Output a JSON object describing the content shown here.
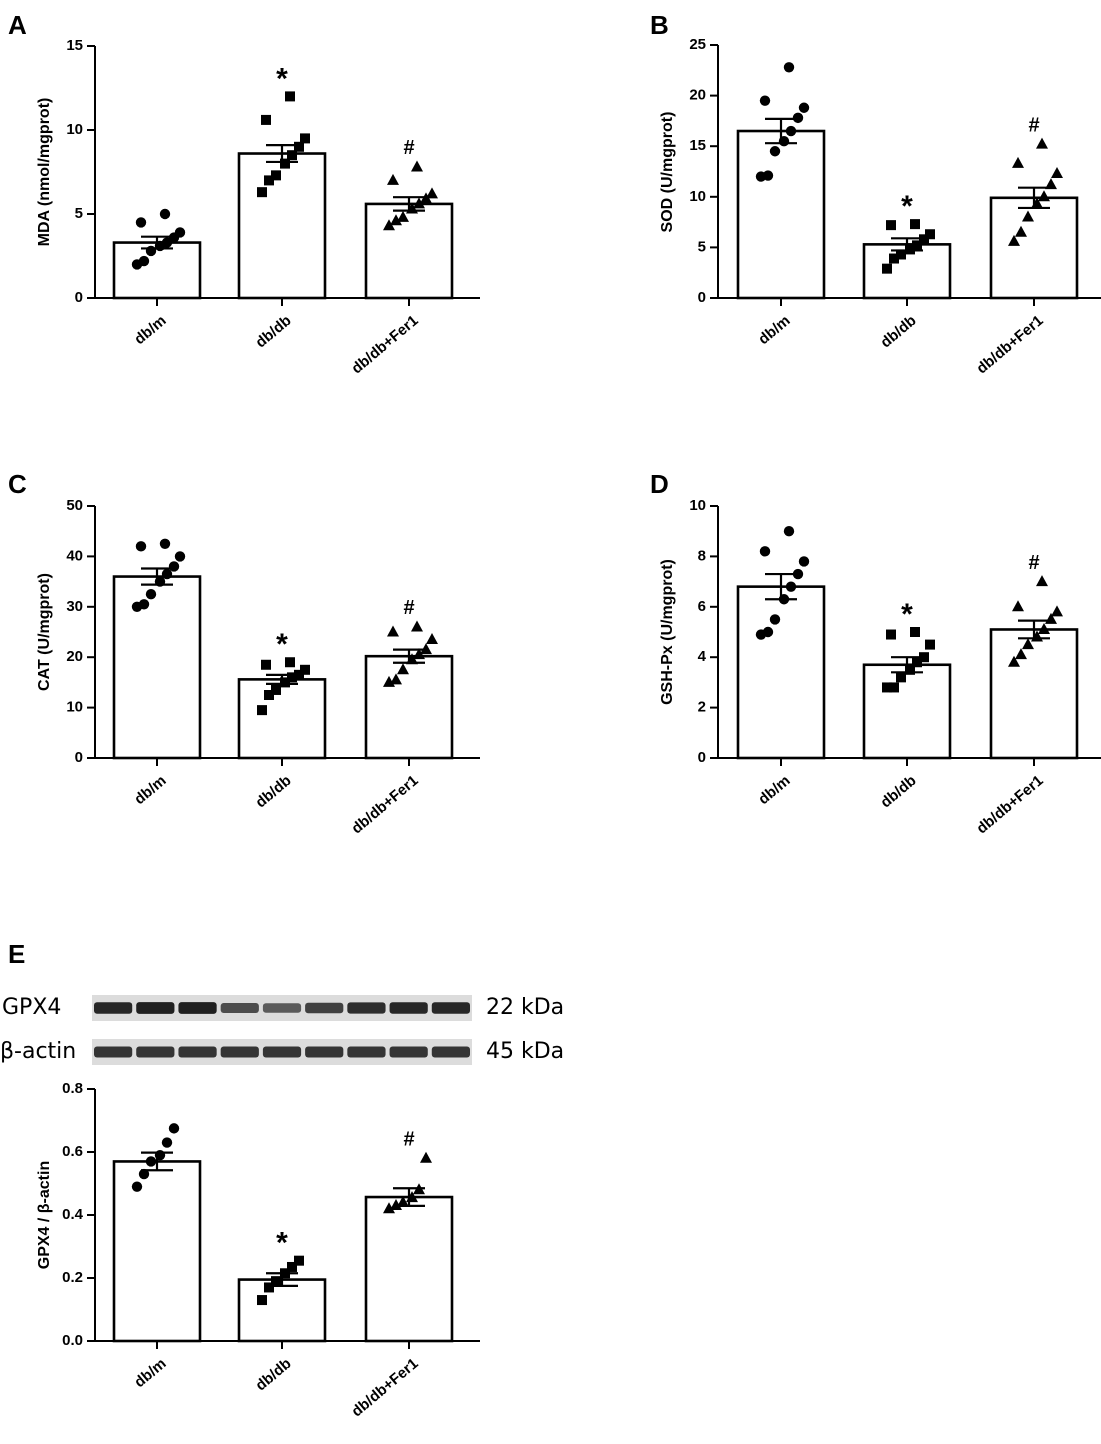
{
  "colors": {
    "ink": "#000000",
    "background": "#ffffff",
    "blot_band": "#1a1a1a",
    "blot_bg": "#dcdcdc"
  },
  "blot": {
    "rows": [
      {
        "label": "GPX4",
        "size": "22 kDa",
        "intensity": [
          0.9,
          0.95,
          0.95,
          0.6,
          0.5,
          0.7,
          0.85,
          0.9,
          0.9
        ]
      },
      {
        "label": "β-actin",
        "size": "45 kDa",
        "intensity": [
          0.8,
          0.8,
          0.8,
          0.8,
          0.8,
          0.8,
          0.8,
          0.8,
          0.8
        ]
      }
    ]
  },
  "chart_data": [
    {
      "type": "bar",
      "panel": "A",
      "ylabel": "MDA (nmol/mgprot)",
      "ylim": [
        0,
        15
      ],
      "yticks": [
        "0",
        "5",
        "10",
        "15"
      ],
      "categories": [
        "db/m",
        "db/db",
        "db/db+Fer1"
      ],
      "values": [
        3.3,
        8.6,
        5.6
      ],
      "sem": [
        0.35,
        0.5,
        0.4
      ],
      "markers": [
        "circle",
        "square",
        "triangle"
      ],
      "points": [
        [
          2.0,
          2.2,
          2.8,
          3.1,
          3.3,
          3.6,
          3.9,
          4.5,
          5.0
        ],
        [
          6.3,
          7.0,
          7.3,
          8.0,
          8.5,
          9.0,
          9.5,
          10.6,
          12.0
        ],
        [
          4.3,
          4.6,
          4.8,
          5.3,
          5.6,
          5.9,
          6.2,
          7.0,
          7.8
        ]
      ],
      "significance": [
        "",
        "*",
        "#"
      ]
    },
    {
      "type": "bar",
      "panel": "B",
      "ylabel": "SOD (U/mgprot)",
      "ylim": [
        0,
        25
      ],
      "yticks": [
        "0",
        "5",
        "10",
        "15",
        "20",
        "25"
      ],
      "categories": [
        "db/m",
        "db/db",
        "db/db+Fer1"
      ],
      "values": [
        16.5,
        5.3,
        9.9
      ],
      "sem": [
        1.2,
        0.6,
        1.0
      ],
      "markers": [
        "circle",
        "square",
        "triangle"
      ],
      "points": [
        [
          12.0,
          12.1,
          14.5,
          15.5,
          16.5,
          17.8,
          18.8,
          19.5,
          22.8
        ],
        [
          2.9,
          3.9,
          4.3,
          4.8,
          5.2,
          5.8,
          6.3,
          7.2,
          7.3
        ],
        [
          5.6,
          6.5,
          8.0,
          9.3,
          10.0,
          11.2,
          12.3,
          13.3,
          15.2
        ]
      ],
      "significance": [
        "",
        "*",
        "#"
      ]
    },
    {
      "type": "bar",
      "panel": "C",
      "ylabel": "CAT (U/mgprot)",
      "ylim": [
        0,
        50
      ],
      "yticks": [
        "0",
        "10",
        "20",
        "30",
        "40",
        "50"
      ],
      "categories": [
        "db/m",
        "db/db",
        "db/db+Fer1"
      ],
      "values": [
        36,
        15.6,
        20.2
      ],
      "sem": [
        1.6,
        0.9,
        1.3
      ],
      "markers": [
        "circle",
        "square",
        "triangle"
      ],
      "points": [
        [
          30.0,
          30.5,
          32.5,
          35.0,
          36.5,
          38.0,
          40.0,
          42.0,
          42.5
        ],
        [
          9.5,
          12.5,
          13.5,
          15.0,
          16.0,
          16.5,
          17.5,
          18.5,
          19.0
        ],
        [
          15.0,
          15.5,
          17.5,
          19.5,
          20.5,
          21.5,
          23.5,
          25.0,
          26.0
        ]
      ],
      "significance": [
        "",
        "*",
        "#"
      ]
    },
    {
      "type": "bar",
      "panel": "D",
      "ylabel": "GSH-Px (U/mgprot)",
      "ylim": [
        0,
        10
      ],
      "yticks": [
        "0",
        "2",
        "4",
        "6",
        "8",
        "10"
      ],
      "categories": [
        "db/m",
        "db/db",
        "db/db+Fer1"
      ],
      "values": [
        6.8,
        3.7,
        5.1
      ],
      "sem": [
        0.5,
        0.3,
        0.35
      ],
      "markers": [
        "circle",
        "square",
        "triangle"
      ],
      "points": [
        [
          4.9,
          5.0,
          5.5,
          6.3,
          6.8,
          7.3,
          7.8,
          8.2,
          9.0
        ],
        [
          2.8,
          2.8,
          3.2,
          3.5,
          3.8,
          4.0,
          4.5,
          4.9,
          5.0
        ],
        [
          3.8,
          4.1,
          4.5,
          4.8,
          5.1,
          5.5,
          5.8,
          6.0,
          7.0
        ]
      ],
      "significance": [
        "",
        "*",
        "#"
      ]
    },
    {
      "type": "bar",
      "panel": "E",
      "ylabel": "GPX4 / β-actin",
      "ylim": [
        0,
        0.8
      ],
      "yticks": [
        "0.0",
        "0.2",
        "0.4",
        "0.6",
        "0.8"
      ],
      "categories": [
        "db/m",
        "db/db",
        "db/db+Fer1"
      ],
      "values": [
        0.57,
        0.195,
        0.457
      ],
      "sem": [
        0.028,
        0.02,
        0.028
      ],
      "markers": [
        "circle",
        "square",
        "triangle"
      ],
      "points": [
        [
          0.49,
          0.53,
          0.57,
          0.59,
          0.63,
          0.675
        ],
        [
          0.13,
          0.17,
          0.19,
          0.215,
          0.235,
          0.255
        ],
        [
          0.42,
          0.43,
          0.44,
          0.455,
          0.48,
          0.58
        ]
      ],
      "significance": [
        "",
        "*",
        "#"
      ]
    }
  ]
}
